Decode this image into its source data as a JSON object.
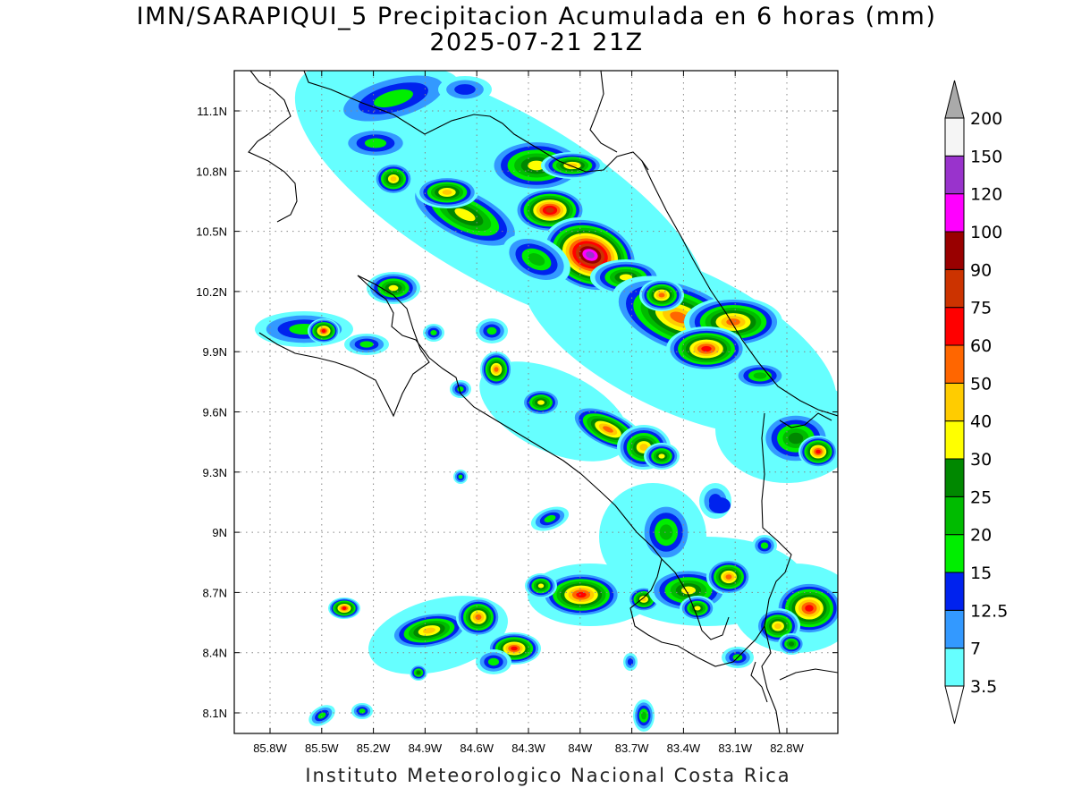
{
  "title": {
    "line1": "IMN/SARAPIQUI_5 Precipitacion Acumulada en 6 horas (mm)",
    "line2": "2025-07-21 21Z"
  },
  "credit": "Instituto Meteorologico Nacional Costa Rica",
  "axes": {
    "lat_ticks": [
      "11.1N",
      "10.8N",
      "10.5N",
      "10.2N",
      "9.9N",
      "9.6N",
      "9.3N",
      "9N",
      "8.7N",
      "8.4N",
      "8.1N"
    ],
    "lon_ticks": [
      "85.8W",
      "85.5W",
      "85.2W",
      "84.9W",
      "84.6W",
      "84.3W",
      "84W",
      "83.7W",
      "83.4W",
      "83.1W",
      "82.8W"
    ],
    "gridlines": "dotted"
  },
  "colorbar": {
    "levels": [
      "3.5",
      "7",
      "12.5",
      "15",
      "20",
      "25",
      "30",
      "40",
      "50",
      "60",
      "75",
      "90",
      "100",
      "120",
      "150",
      "200"
    ],
    "colors": [
      "#66ffff",
      "#3399ff",
      "#0022ee",
      "#00ee00",
      "#00bb00",
      "#008800",
      "#ffff00",
      "#ffcc00",
      "#ff6600",
      "#ff0000",
      "#cc3300",
      "#990000",
      "#ff00ff",
      "#9933cc",
      "#f5f5f5",
      "#aaaaaa"
    ]
  }
}
